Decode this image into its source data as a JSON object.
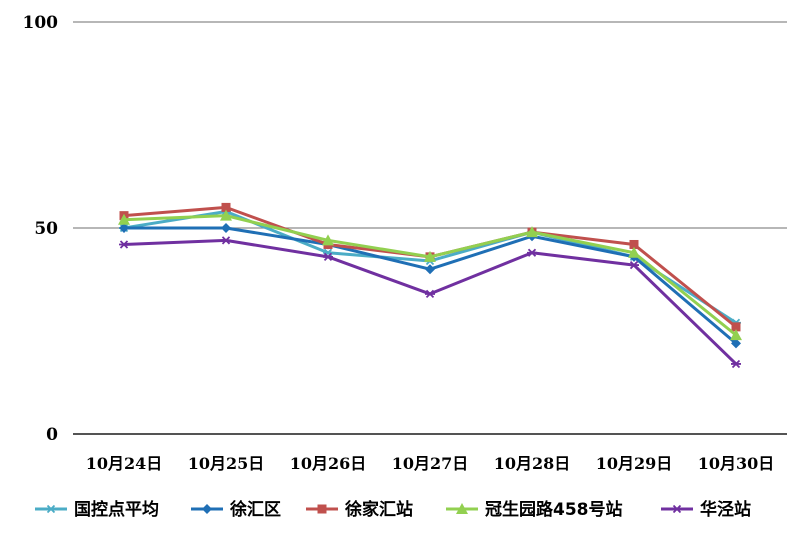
{
  "chart_data": {
    "type": "line",
    "categories": [
      "10月24日",
      "10月25日",
      "10月26日",
      "10月27日",
      "10月28日",
      "10月29日",
      "10月30日"
    ],
    "ylim": [
      0,
      100
    ],
    "yticks": [
      "0",
      "50",
      "100"
    ],
    "grid": true,
    "legend_position": "bottom",
    "series": [
      {
        "name": "国控点平均",
        "color": "#4bacc6",
        "marker": "star",
        "values": [
          50,
          54,
          44,
          42,
          49,
          43,
          27
        ]
      },
      {
        "name": "徐汇区",
        "color": "#1f6fb5",
        "marker": "diamond",
        "values": [
          50,
          50,
          46,
          40,
          48,
          43,
          22
        ]
      },
      {
        "name": "徐家汇站",
        "color": "#c0504d",
        "marker": "square",
        "values": [
          53,
          55,
          46,
          43,
          49,
          46,
          26
        ]
      },
      {
        "name": "冠生园路458号站",
        "color": "#92d050",
        "marker": "triangle",
        "values": [
          52,
          53,
          47,
          43,
          49,
          44,
          24
        ]
      },
      {
        "name": "华泾站",
        "color": "#7030a0",
        "marker": "star",
        "values": [
          46,
          47,
          43,
          34,
          44,
          41,
          17
        ]
      }
    ]
  }
}
